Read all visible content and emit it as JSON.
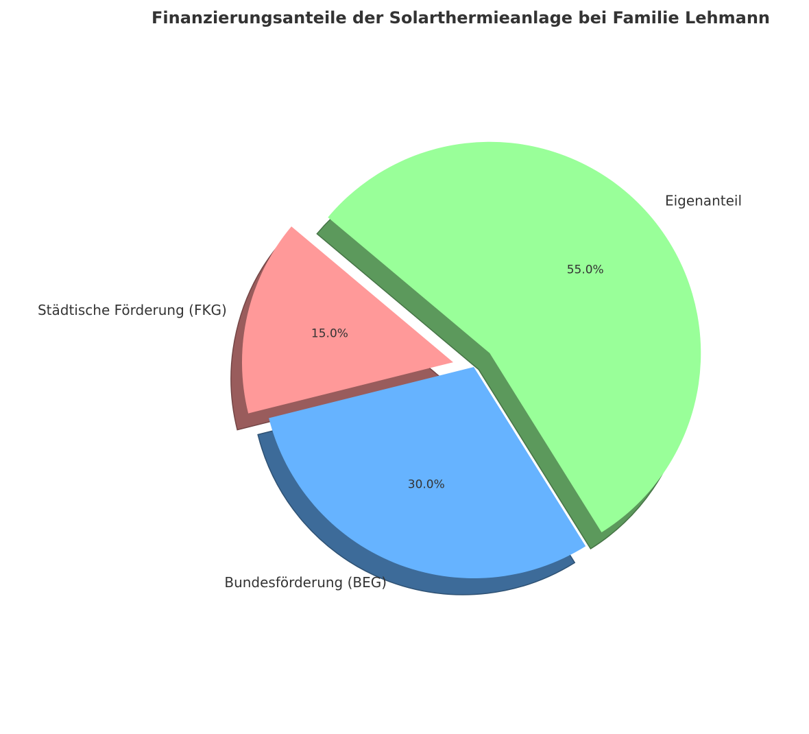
{
  "chart_data": {
    "type": "pie",
    "title": "Finanzierungsanteile der Solarthermieanlage bei Familie Lehmann",
    "slices": [
      {
        "label": "Städtische Förderung (FKG)",
        "value": 15.0,
        "pct_label": "15.0%",
        "color": "#ff9999",
        "explode": 0.1
      },
      {
        "label": "Bundesförderung (BEG)",
        "value": 30.0,
        "pct_label": "30.0%",
        "color": "#66b3ff",
        "explode": 0.0
      },
      {
        "label": "Eigenanteil",
        "value": 55.0,
        "pct_label": "55.0%",
        "color": "#99ff99",
        "explode": 0.1
      }
    ],
    "start_angle_deg": 140,
    "counterclockwise": true,
    "shadow": true,
    "legend": "none"
  }
}
